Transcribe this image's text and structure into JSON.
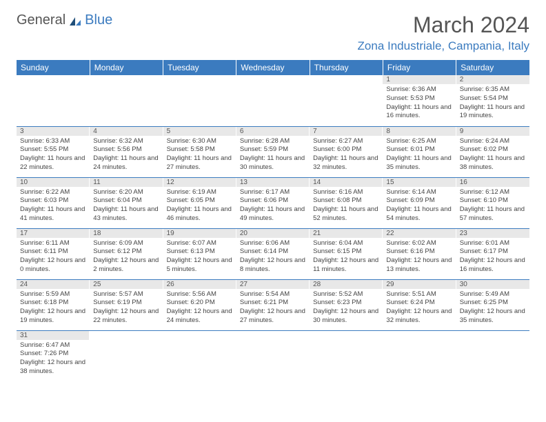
{
  "logo": {
    "part1": "General",
    "part2": "Blue"
  },
  "title": "March 2024",
  "location": "Zona Industriale, Campania, Italy",
  "colors": {
    "accent": "#3b7bbf",
    "header_bg": "#3b7bbf",
    "daynum_bg": "#e8e8e8",
    "text": "#444"
  },
  "weekdays": [
    "Sunday",
    "Monday",
    "Tuesday",
    "Wednesday",
    "Thursday",
    "Friday",
    "Saturday"
  ],
  "weeks": [
    [
      {
        "empty": true
      },
      {
        "empty": true
      },
      {
        "empty": true
      },
      {
        "empty": true
      },
      {
        "empty": true
      },
      {
        "day": "1",
        "sunrise": "Sunrise: 6:36 AM",
        "sunset": "Sunset: 5:53 PM",
        "daylight": "Daylight: 11 hours and 16 minutes."
      },
      {
        "day": "2",
        "sunrise": "Sunrise: 6:35 AM",
        "sunset": "Sunset: 5:54 PM",
        "daylight": "Daylight: 11 hours and 19 minutes."
      }
    ],
    [
      {
        "day": "3",
        "sunrise": "Sunrise: 6:33 AM",
        "sunset": "Sunset: 5:55 PM",
        "daylight": "Daylight: 11 hours and 22 minutes."
      },
      {
        "day": "4",
        "sunrise": "Sunrise: 6:32 AM",
        "sunset": "Sunset: 5:56 PM",
        "daylight": "Daylight: 11 hours and 24 minutes."
      },
      {
        "day": "5",
        "sunrise": "Sunrise: 6:30 AM",
        "sunset": "Sunset: 5:58 PM",
        "daylight": "Daylight: 11 hours and 27 minutes."
      },
      {
        "day": "6",
        "sunrise": "Sunrise: 6:28 AM",
        "sunset": "Sunset: 5:59 PM",
        "daylight": "Daylight: 11 hours and 30 minutes."
      },
      {
        "day": "7",
        "sunrise": "Sunrise: 6:27 AM",
        "sunset": "Sunset: 6:00 PM",
        "daylight": "Daylight: 11 hours and 32 minutes."
      },
      {
        "day": "8",
        "sunrise": "Sunrise: 6:25 AM",
        "sunset": "Sunset: 6:01 PM",
        "daylight": "Daylight: 11 hours and 35 minutes."
      },
      {
        "day": "9",
        "sunrise": "Sunrise: 6:24 AM",
        "sunset": "Sunset: 6:02 PM",
        "daylight": "Daylight: 11 hours and 38 minutes."
      }
    ],
    [
      {
        "day": "10",
        "sunrise": "Sunrise: 6:22 AM",
        "sunset": "Sunset: 6:03 PM",
        "daylight": "Daylight: 11 hours and 41 minutes."
      },
      {
        "day": "11",
        "sunrise": "Sunrise: 6:20 AM",
        "sunset": "Sunset: 6:04 PM",
        "daylight": "Daylight: 11 hours and 43 minutes."
      },
      {
        "day": "12",
        "sunrise": "Sunrise: 6:19 AM",
        "sunset": "Sunset: 6:05 PM",
        "daylight": "Daylight: 11 hours and 46 minutes."
      },
      {
        "day": "13",
        "sunrise": "Sunrise: 6:17 AM",
        "sunset": "Sunset: 6:06 PM",
        "daylight": "Daylight: 11 hours and 49 minutes."
      },
      {
        "day": "14",
        "sunrise": "Sunrise: 6:16 AM",
        "sunset": "Sunset: 6:08 PM",
        "daylight": "Daylight: 11 hours and 52 minutes."
      },
      {
        "day": "15",
        "sunrise": "Sunrise: 6:14 AM",
        "sunset": "Sunset: 6:09 PM",
        "daylight": "Daylight: 11 hours and 54 minutes."
      },
      {
        "day": "16",
        "sunrise": "Sunrise: 6:12 AM",
        "sunset": "Sunset: 6:10 PM",
        "daylight": "Daylight: 11 hours and 57 minutes."
      }
    ],
    [
      {
        "day": "17",
        "sunrise": "Sunrise: 6:11 AM",
        "sunset": "Sunset: 6:11 PM",
        "daylight": "Daylight: 12 hours and 0 minutes."
      },
      {
        "day": "18",
        "sunrise": "Sunrise: 6:09 AM",
        "sunset": "Sunset: 6:12 PM",
        "daylight": "Daylight: 12 hours and 2 minutes."
      },
      {
        "day": "19",
        "sunrise": "Sunrise: 6:07 AM",
        "sunset": "Sunset: 6:13 PM",
        "daylight": "Daylight: 12 hours and 5 minutes."
      },
      {
        "day": "20",
        "sunrise": "Sunrise: 6:06 AM",
        "sunset": "Sunset: 6:14 PM",
        "daylight": "Daylight: 12 hours and 8 minutes."
      },
      {
        "day": "21",
        "sunrise": "Sunrise: 6:04 AM",
        "sunset": "Sunset: 6:15 PM",
        "daylight": "Daylight: 12 hours and 11 minutes."
      },
      {
        "day": "22",
        "sunrise": "Sunrise: 6:02 AM",
        "sunset": "Sunset: 6:16 PM",
        "daylight": "Daylight: 12 hours and 13 minutes."
      },
      {
        "day": "23",
        "sunrise": "Sunrise: 6:01 AM",
        "sunset": "Sunset: 6:17 PM",
        "daylight": "Daylight: 12 hours and 16 minutes."
      }
    ],
    [
      {
        "day": "24",
        "sunrise": "Sunrise: 5:59 AM",
        "sunset": "Sunset: 6:18 PM",
        "daylight": "Daylight: 12 hours and 19 minutes."
      },
      {
        "day": "25",
        "sunrise": "Sunrise: 5:57 AM",
        "sunset": "Sunset: 6:19 PM",
        "daylight": "Daylight: 12 hours and 22 minutes."
      },
      {
        "day": "26",
        "sunrise": "Sunrise: 5:56 AM",
        "sunset": "Sunset: 6:20 PM",
        "daylight": "Daylight: 12 hours and 24 minutes."
      },
      {
        "day": "27",
        "sunrise": "Sunrise: 5:54 AM",
        "sunset": "Sunset: 6:21 PM",
        "daylight": "Daylight: 12 hours and 27 minutes."
      },
      {
        "day": "28",
        "sunrise": "Sunrise: 5:52 AM",
        "sunset": "Sunset: 6:23 PM",
        "daylight": "Daylight: 12 hours and 30 minutes."
      },
      {
        "day": "29",
        "sunrise": "Sunrise: 5:51 AM",
        "sunset": "Sunset: 6:24 PM",
        "daylight": "Daylight: 12 hours and 32 minutes."
      },
      {
        "day": "30",
        "sunrise": "Sunrise: 5:49 AM",
        "sunset": "Sunset: 6:25 PM",
        "daylight": "Daylight: 12 hours and 35 minutes."
      }
    ],
    [
      {
        "day": "31",
        "sunrise": "Sunrise: 6:47 AM",
        "sunset": "Sunset: 7:26 PM",
        "daylight": "Daylight: 12 hours and 38 minutes."
      },
      {
        "empty": true
      },
      {
        "empty": true
      },
      {
        "empty": true
      },
      {
        "empty": true
      },
      {
        "empty": true
      },
      {
        "empty": true
      }
    ]
  ]
}
